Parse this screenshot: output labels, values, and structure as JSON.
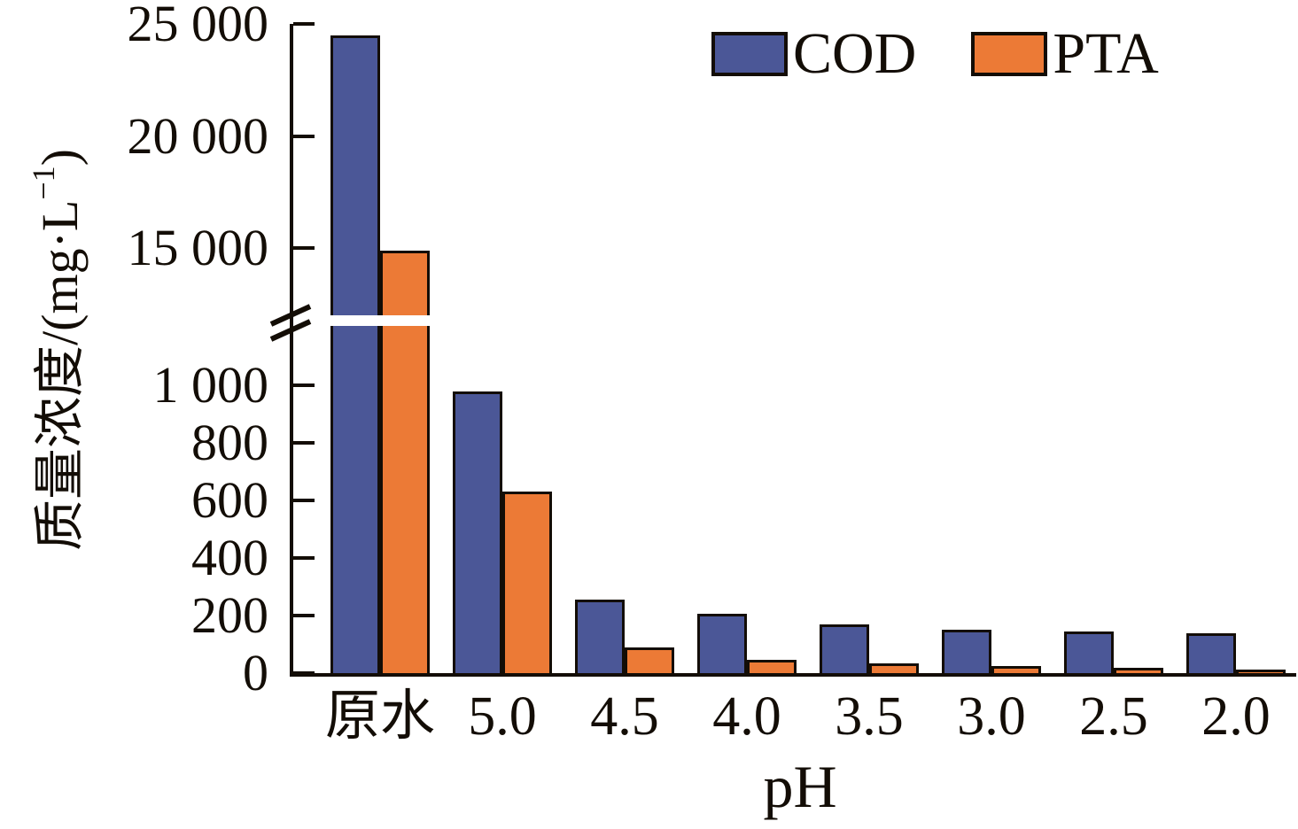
{
  "chart_data": {
    "type": "bar",
    "title": "",
    "xlabel": "pH",
    "ylabel": "质量浓度/(mg·L⁻¹)",
    "ylabel_parts": {
      "main": "质量浓度/(mg·L",
      "sup": "−1",
      "end": ")"
    },
    "categories": [
      "原水",
      "5.0",
      "4.5",
      "4.0",
      "3.5",
      "3.0",
      "2.5",
      "2.0"
    ],
    "series": [
      {
        "name": "COD",
        "color": "#4B5797",
        "values": [
          24500,
          980,
          255,
          205,
          170,
          150,
          145,
          140
        ]
      },
      {
        "name": "PTA",
        "color": "#EC7A36",
        "values": [
          14900,
          630,
          90,
          45,
          33,
          25,
          18,
          12
        ]
      }
    ],
    "axis_break": {
      "lower_range": [
        0,
        1200
      ],
      "upper_range": [
        12000,
        25000
      ]
    },
    "yticks": [
      {
        "value": 25000,
        "label": "25 000"
      },
      {
        "value": 20000,
        "label": "20 000"
      },
      {
        "value": 15000,
        "label": "15 000"
      },
      {
        "value": 1000,
        "label": "1 000"
      },
      {
        "value": 800,
        "label": "800"
      },
      {
        "value": 600,
        "label": "600"
      },
      {
        "value": 400,
        "label": "400"
      },
      {
        "value": 200,
        "label": "200"
      },
      {
        "value": 0,
        "label": "0"
      }
    ],
    "legend_position": "top-right",
    "grid": false
  },
  "colors": {
    "axis": "#130d06",
    "background": "#ffffff",
    "cod_fill": "#4B5797",
    "pta_fill": "#EC7A36"
  }
}
